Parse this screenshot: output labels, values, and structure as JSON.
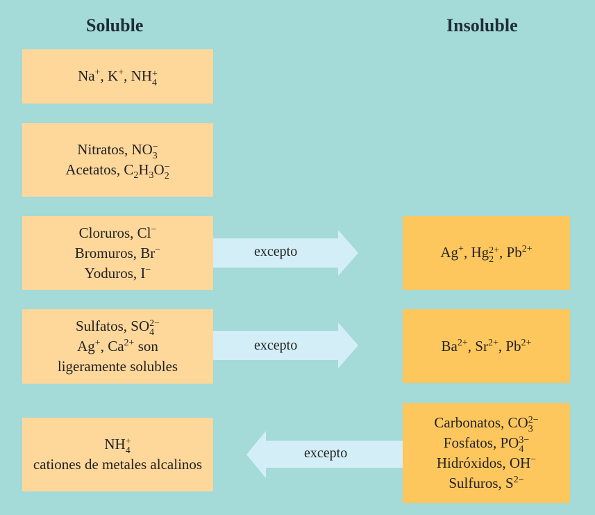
{
  "headings": {
    "soluble": "Soluble",
    "insoluble": "Insoluble"
  },
  "arrow_label": "excepto",
  "soluble": [
    {
      "items": [
        {
          "prefix": "",
          "formula": [
            {
              "base": "Na",
              "sup": "+"
            },
            {
              "text": ", "
            },
            {
              "base": "K",
              "sup": "+"
            },
            {
              "text": ", "
            },
            {
              "base": "NH",
              "sub": "4",
              "sup": "+"
            }
          ]
        }
      ]
    },
    {
      "items": [
        {
          "prefix": "Nitratos, ",
          "formula": [
            {
              "base": "NO",
              "sub": "3",
              "sup": "−"
            }
          ]
        },
        {
          "prefix": "Acetatos, ",
          "formula": [
            {
              "base": "C",
              "sub": "2"
            },
            {
              "base": "H",
              "sub": "3"
            },
            {
              "base": "O",
              "sub": "2",
              "sup": "−"
            }
          ]
        }
      ]
    },
    {
      "items": [
        {
          "prefix": "Cloruros,  ",
          "formula": [
            {
              "base": "Cl",
              "sup": "−"
            }
          ]
        },
        {
          "prefix": "Bromuros, ",
          "formula": [
            {
              "base": "Br",
              "sup": "−"
            }
          ]
        },
        {
          "prefix": "Yoduros, ",
          "formula": [
            {
              "base": "I",
              "sup": "−"
            }
          ]
        }
      ]
    },
    {
      "items": [
        {
          "prefix": "Sulfatos, ",
          "formula": [
            {
              "base": "SO",
              "sub": "4",
              "sup": "2−"
            }
          ]
        },
        {
          "prefix": "",
          "formula": [
            {
              "base": "Ag",
              "sup": "+"
            },
            {
              "text": ", "
            },
            {
              "base": "Ca",
              "sup": "2+"
            },
            {
              "text": " son"
            }
          ]
        },
        {
          "prefix": "ligeramente solubles",
          "formula": []
        }
      ]
    },
    {
      "items": [
        {
          "prefix": "",
          "formula": [
            {
              "base": "NH",
              "sub": "4",
              "sup": "+"
            }
          ]
        },
        {
          "prefix": "cationes de metales alcalinos",
          "formula": []
        }
      ]
    }
  ],
  "insoluble": [
    {
      "row": 2,
      "items": [
        {
          "prefix": "",
          "formula": [
            {
              "base": "Ag",
              "sup": "+"
            },
            {
              "text": ", "
            },
            {
              "base": "Hg",
              "sub": "2",
              "sup": "2+"
            },
            {
              "text": ", "
            },
            {
              "base": "Pb",
              "sup": "2+"
            }
          ]
        }
      ]
    },
    {
      "row": 3,
      "items": [
        {
          "prefix": "",
          "formula": [
            {
              "base": "Ba",
              "sup": "2+"
            },
            {
              "text": ", "
            },
            {
              "base": "Sr",
              "sup": "2+"
            },
            {
              "text": ", "
            },
            {
              "base": "Pb",
              "sup": "2+"
            }
          ]
        }
      ]
    },
    {
      "row": 4,
      "items": [
        {
          "prefix": "Carbonatos, ",
          "formula": [
            {
              "base": "CO",
              "sub": "3",
              "sup": "2−"
            }
          ]
        },
        {
          "prefix": "Fosfatos, ",
          "formula": [
            {
              "base": "PO",
              "sub": "4",
              "sup": "3−"
            }
          ]
        },
        {
          "prefix": "Hidróxidos, ",
          "formula": [
            {
              "base": "OH",
              "sup": "−"
            }
          ]
        },
        {
          "prefix": "Sulfuros, ",
          "formula": [
            {
              "base": "S",
              "sup": "2−"
            }
          ]
        }
      ]
    }
  ],
  "arrows": [
    {
      "row": 2,
      "direction": "right"
    },
    {
      "row": 3,
      "direction": "right"
    },
    {
      "row": 4,
      "direction": "left"
    }
  ],
  "colors": {
    "background": "#a4dad8",
    "soluble_box": "#fed79b",
    "insoluble_box": "#fec75d",
    "arrow": "#d4eef8"
  }
}
